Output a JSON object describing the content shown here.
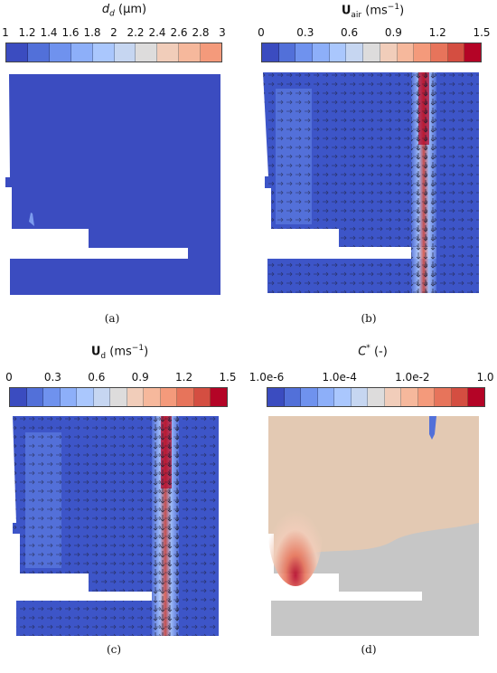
{
  "colors": [
    "#3b4cc0",
    "#5270d9",
    "#6f92ee",
    "#8daff9",
    "#aac7fd",
    "#c6d6f1",
    "#dddcdc",
    "#f1cdba",
    "#f6b89c",
    "#f49a7b",
    "#e7745b",
    "#d44e41",
    "#b40426"
  ],
  "panels": [
    {
      "id": "a",
      "title_main": "d",
      "title_sub": "d",
      "title_unit": "(µm)",
      "ticks": [
        "1",
        "1.2",
        "1.4",
        "1.6",
        "1.8",
        "2",
        "2.2",
        "2.4",
        "2.6",
        "2.8",
        "3"
      ],
      "caption": "(a)",
      "field": "uniform-blue"
    },
    {
      "id": "b",
      "title_main": "U",
      "title_sub": "air",
      "title_unit": "(ms",
      "title_sup": "−1",
      "title_close": ")",
      "ticks": [
        "0",
        "0.3",
        "0.6",
        "0.9",
        "1.2",
        "1.5"
      ],
      "caption": "(b)",
      "field": "velocity-air"
    },
    {
      "id": "c",
      "title_main": "U",
      "title_sub": "d",
      "title_unit": "(ms",
      "title_sup": "−1",
      "title_close": ")",
      "ticks": [
        "0",
        "0.3",
        "0.6",
        "0.9",
        "1.2",
        "1.5"
      ],
      "caption": "(c)",
      "field": "velocity-droplet"
    },
    {
      "id": "d",
      "title_main": "C",
      "title_sup": "*",
      "title_unit": "(-)",
      "ticks": [
        "1.0e-6",
        "1.0e-4",
        "1.0e-2",
        "1.0"
      ],
      "caption": "(d)",
      "field": "concentration"
    }
  ]
}
